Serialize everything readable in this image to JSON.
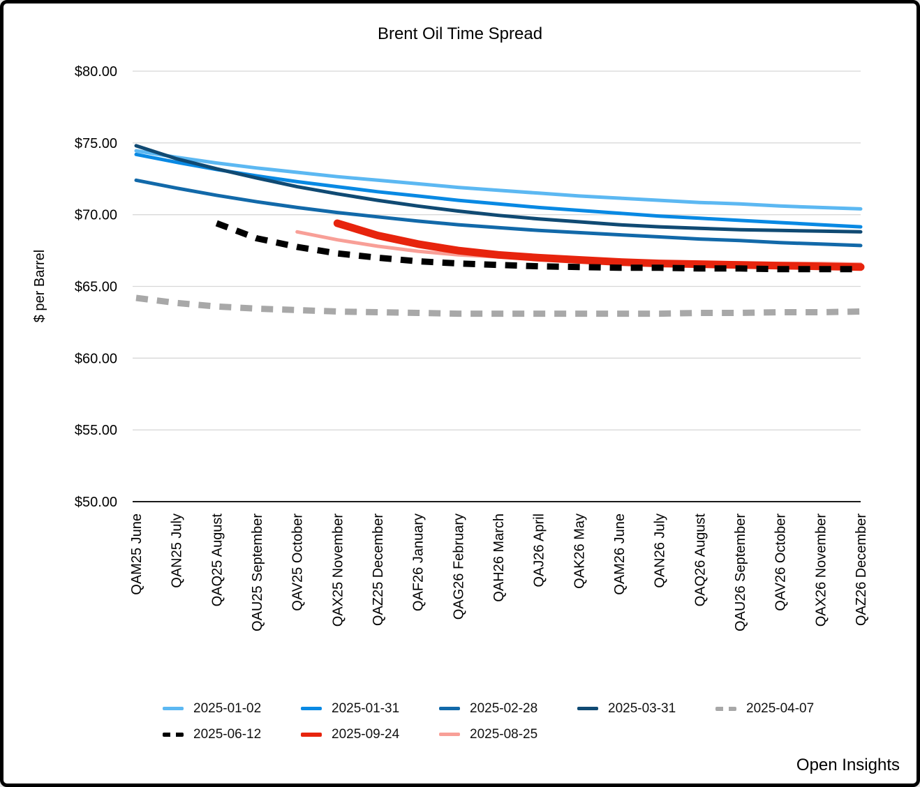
{
  "title": "Brent Oil Time Spread",
  "footer": "Open Insights",
  "chart_data": {
    "type": "line",
    "title": "Brent Oil Time Spread",
    "xlabel": "",
    "ylabel": "$ per Barrel",
    "ylim": [
      50,
      80
    ],
    "grid": true,
    "legend_position": "bottom",
    "axis_colors": {
      "gridline": "#d8d8d8",
      "baseline": "#1a1a1a",
      "text": "#000000"
    },
    "yticks": [
      {
        "value": 80,
        "label": "$80.00"
      },
      {
        "value": 75,
        "label": "$75.00"
      },
      {
        "value": 70,
        "label": "$70.00"
      },
      {
        "value": 65,
        "label": "$65.00"
      },
      {
        "value": 60,
        "label": "$60.00"
      },
      {
        "value": 55,
        "label": "$55.00"
      },
      {
        "value": 50,
        "label": "$50.00"
      }
    ],
    "categories": [
      "QAM25 June",
      "QAN25 July",
      "QAQ25 August",
      "QAU25 September",
      "QAV25 October",
      "QAX25 November",
      "QAZ25 December",
      "QAF26 January",
      "QAG26 February",
      "QAH26 March",
      "QAJ26 April",
      "QAK26 May",
      "QAM26 June",
      "QAN26 July",
      "QAQ26 August",
      "QAU26 September",
      "QAV26 October",
      "QAX26 November",
      "QAZ26 December"
    ],
    "series": [
      {
        "name": "2025-01-02",
        "color": "#5CB8F2",
        "style": "solid",
        "width": 5,
        "values": [
          74.45,
          74.0,
          73.6,
          73.25,
          72.95,
          72.65,
          72.4,
          72.15,
          71.9,
          71.7,
          71.5,
          71.3,
          71.15,
          71.0,
          70.85,
          70.75,
          70.6,
          70.5,
          70.4
        ]
      },
      {
        "name": "2025-01-31",
        "color": "#0989E3",
        "style": "solid",
        "width": 5,
        "values": [
          74.2,
          73.65,
          73.15,
          72.7,
          72.3,
          71.95,
          71.6,
          71.3,
          71.0,
          70.75,
          70.5,
          70.3,
          70.1,
          69.9,
          69.75,
          69.6,
          69.45,
          69.3,
          69.15
        ]
      },
      {
        "name": "2025-02-28",
        "color": "#1269A9",
        "style": "solid",
        "width": 5,
        "values": [
          72.4,
          71.85,
          71.35,
          70.9,
          70.5,
          70.15,
          69.85,
          69.55,
          69.3,
          69.1,
          68.9,
          68.75,
          68.6,
          68.45,
          68.3,
          68.2,
          68.05,
          67.95,
          67.85
        ]
      },
      {
        "name": "2025-03-31",
        "color": "#104A73",
        "style": "solid",
        "width": 5,
        "values": [
          74.8,
          73.9,
          73.2,
          72.55,
          71.95,
          71.45,
          71.0,
          70.6,
          70.25,
          69.95,
          69.7,
          69.5,
          69.3,
          69.15,
          69.05,
          68.95,
          68.9,
          68.85,
          68.8
        ]
      },
      {
        "name": "2025-04-07",
        "color": "#A8A8A8",
        "style": "dashed",
        "width": 9,
        "values": [
          64.2,
          63.85,
          63.6,
          63.45,
          63.35,
          63.25,
          63.2,
          63.15,
          63.1,
          63.1,
          63.1,
          63.1,
          63.1,
          63.1,
          63.15,
          63.15,
          63.2,
          63.2,
          63.25
        ]
      },
      {
        "name": "2025-06-12",
        "color": "#000000",
        "style": "dashed",
        "width": 9,
        "values": [
          null,
          null,
          69.4,
          68.35,
          67.75,
          67.3,
          67.0,
          66.75,
          66.6,
          66.5,
          66.4,
          66.35,
          66.3,
          66.3,
          66.25,
          66.25,
          66.2,
          66.2,
          66.2
        ]
      },
      {
        "name": "2025-09-24",
        "color": "#E7240D",
        "style": "solid",
        "width": 11,
        "values": [
          null,
          null,
          null,
          null,
          null,
          69.4,
          68.55,
          67.95,
          67.5,
          67.2,
          67.0,
          66.85,
          66.7,
          66.6,
          66.55,
          66.5,
          66.45,
          66.4,
          66.35
        ]
      },
      {
        "name": "2025-08-25",
        "color": "#F89F97",
        "style": "solid",
        "width": 5,
        "values": [
          null,
          null,
          null,
          null,
          68.8,
          68.25,
          67.8,
          67.45,
          67.2,
          67.05,
          66.9,
          66.8,
          66.75,
          66.7,
          66.65,
          66.65,
          66.6,
          66.6,
          66.55
        ]
      }
    ],
    "draw_order": [
      "2025-01-02",
      "2025-01-31",
      "2025-02-28",
      "2025-03-31",
      "2025-04-07",
      "2025-08-25",
      "2025-09-24",
      "2025-06-12"
    ],
    "legend_rows": [
      [
        "2025-01-02",
        "2025-01-31",
        "2025-02-28",
        "2025-03-31",
        "2025-04-07"
      ],
      [
        "2025-06-12",
        "2025-09-24",
        "2025-08-25"
      ]
    ]
  }
}
